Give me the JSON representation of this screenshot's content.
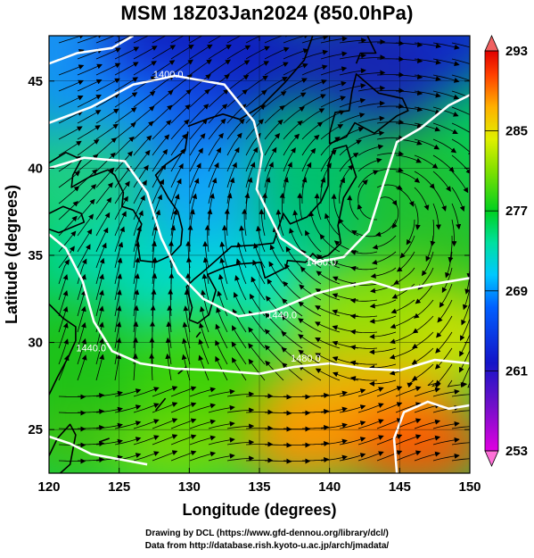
{
  "title": "MSM 18Z03Jan2024 (850.0hPa)",
  "x_axis": {
    "label": "Longitude (degrees)",
    "min": 120,
    "max": 150,
    "ticks": [
      "120",
      "125",
      "130",
      "135",
      "140",
      "145",
      "150"
    ]
  },
  "y_axis": {
    "label": "Latitude  (degrees)",
    "min": 22.5,
    "max": 47.6,
    "ticks": [
      "25",
      "30",
      "35",
      "40",
      "45"
    ]
  },
  "colorbar": {
    "min": 253,
    "max": 293,
    "labels": [
      "293",
      "285",
      "277",
      "269",
      "261",
      "253"
    ]
  },
  "contour_labels": [
    {
      "text": "1400.0",
      "lon": 128.5,
      "lat": 45.2
    },
    {
      "text": "1400.0",
      "lon": 139.4,
      "lat": 34.4
    },
    {
      "text": "1440.0",
      "lon": 136.6,
      "lat": 31.4
    },
    {
      "text": "1480.0",
      "lon": 138.3,
      "lat": 28.9
    },
    {
      "text": "1440.0",
      "lon": 123.0,
      "lat": 29.5
    }
  ],
  "credits": [
    "Drawing by DCL (https://www.gfd-dennou.org/library/dcl/)",
    "Data from http://database.rish.kyoto-u.ac.jp/arch/jmadata/"
  ],
  "colors": {
    "field_warm": "#ff3a00",
    "field_cold": "#1818c8",
    "contour": "#ffffff",
    "coast": "#000000"
  }
}
